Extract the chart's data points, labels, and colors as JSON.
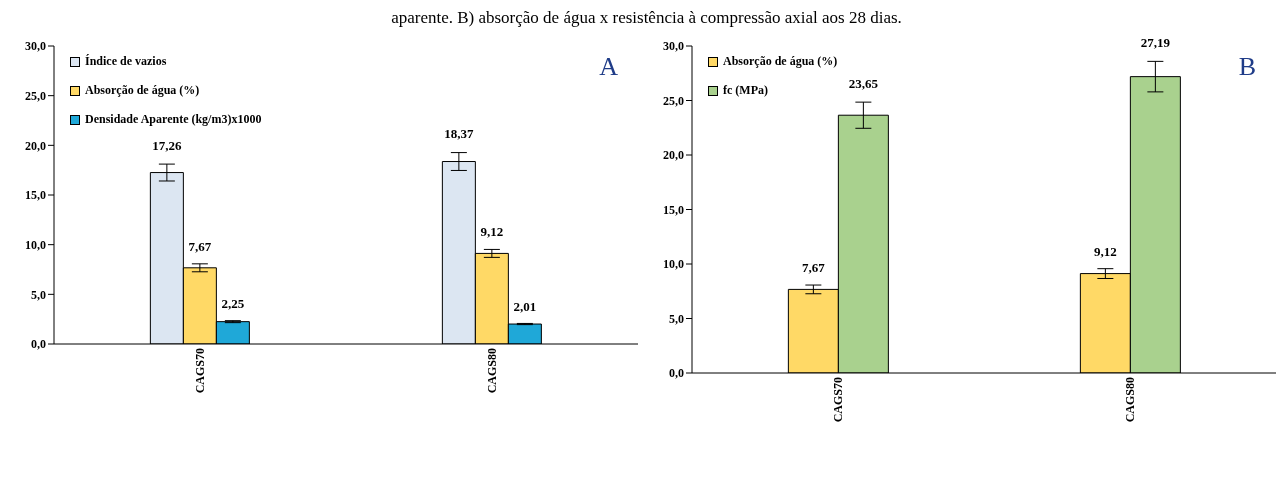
{
  "chart_data": [
    {
      "type": "bar",
      "annotations": [
        "aparente. B) absorção de água x resistência à compressão axial aos 28 dias.",
        "A"
      ],
      "categories": [
        "CAGS70",
        "CAGS80"
      ],
      "series": [
        {
          "name": "Índice de vazios",
          "color": "#dce6f2",
          "values": [
            17.26,
            18.37
          ],
          "errors": [
            0.85,
            0.9
          ],
          "value_labels": [
            "17,26",
            "18,37"
          ]
        },
        {
          "name": "Absorção de água (%)",
          "color": "#ffd966",
          "values": [
            7.67,
            9.12
          ],
          "errors": [
            0.4,
            0.4
          ],
          "value_labels": [
            "7,67",
            "9,12"
          ]
        },
        {
          "name": "Densidade Aparente (kg/m3)x1000",
          "color": "#1fa8d8",
          "values": [
            2.25,
            2.01
          ],
          "errors": [
            0.1,
            0.06
          ],
          "value_labels": [
            "2,25",
            "2,01"
          ]
        }
      ],
      "ylim": [
        0,
        30
      ],
      "yticks": [
        {
          "value": 0,
          "label": "0,0"
        },
        {
          "value": 5,
          "label": "5,0"
        },
        {
          "value": 10,
          "label": "10,0"
        },
        {
          "value": 15,
          "label": "15,0"
        },
        {
          "value": 20,
          "label": "20,0"
        },
        {
          "value": 25,
          "label": "25,0"
        },
        {
          "value": 30,
          "label": "30,0"
        }
      ],
      "legend": "top left"
    },
    {
      "type": "bar",
      "annotations": [
        "B"
      ],
      "categories": [
        "CAGS70",
        "CAGS80"
      ],
      "series": [
        {
          "name": "Absorção de água (%)",
          "color": "#ffd966",
          "values": [
            7.67,
            9.12
          ],
          "errors": [
            0.4,
            0.45
          ],
          "value_labels": [
            "7,67",
            "9,12"
          ]
        },
        {
          "name": "fc (MPa)",
          "color": "#a9d18e",
          "values": [
            23.65,
            27.19
          ],
          "errors": [
            1.2,
            1.4
          ],
          "value_labels": [
            "23,65",
            "27,19"
          ]
        }
      ],
      "ylim": [
        0,
        30
      ],
      "yticks": [
        {
          "value": 0,
          "label": "0,0"
        },
        {
          "value": 5,
          "label": "5,0"
        },
        {
          "value": 10,
          "label": "10,0"
        },
        {
          "value": 15,
          "label": "15,0"
        },
        {
          "value": 20,
          "label": "20,0"
        },
        {
          "value": 25,
          "label": "25,0"
        },
        {
          "value": 30,
          "label": "30,0"
        }
      ],
      "legend": "top left"
    }
  ]
}
